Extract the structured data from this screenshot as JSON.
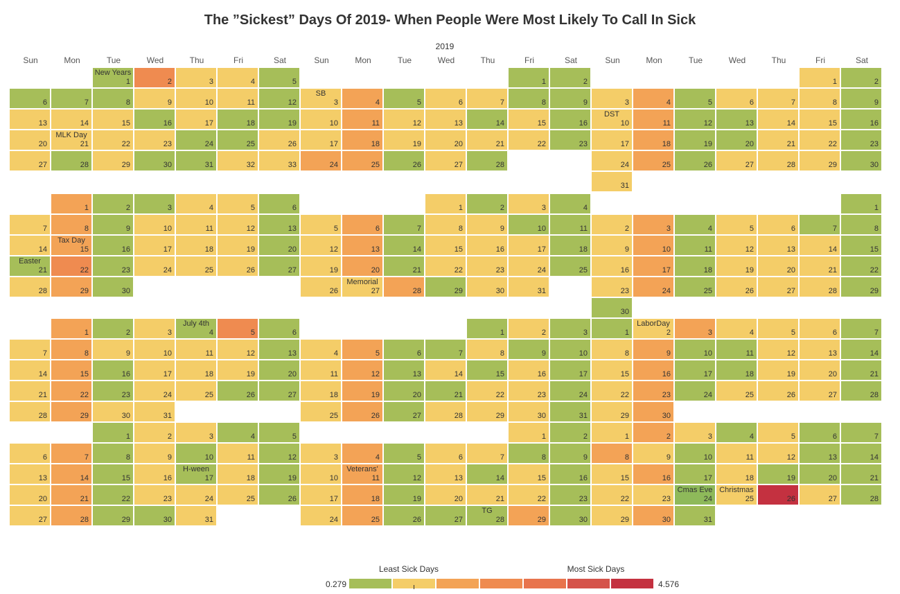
{
  "title": "The ”Sickest” Days Of 2019- When People Were Most Likely To Call In Sick",
  "year": "2019",
  "weekdays": [
    "Sun",
    "Mon",
    "Tue",
    "Wed",
    "Thu",
    "Fri",
    "Sat"
  ],
  "colors": {
    "G": "#a6be59",
    "Y": "#f4cd68",
    "O": "#f3a356",
    "D": "#ef8b50",
    "R": "#c43140",
    "L": "#8eb95a"
  },
  "legend": {
    "least_label": "Least Sick Days",
    "most_label": "Most Sick Days",
    "min": "0.279",
    "max": "4.576",
    "swatches": [
      "#a6be59",
      "#f4cd68",
      "#f3a356",
      "#ef8b50",
      "#e8744d",
      "#d5534a",
      "#c43140"
    ]
  },
  "chart_data": {
    "type": "heatmap",
    "title": "The ”Sickest” Days Of 2019- When People Were Most Likely To Call In Sick",
    "value_range": [
      0.279,
      4.576
    ],
    "color_key": "G=low (green), Y=low-mid (yellow), O=mid (orange), D=high (dark orange), R=highest (red), L=light green",
    "months": [
      {
        "start": 2,
        "colors": "GDYYG GGGYYYG YYYGYGGYY YYGGYYG YGGYY",
        "labels": {
          "1": "New Years",
          "21": "MLK Day"
        }
      },
      {
        "start": 5,
        "colors": "GG YOGYYGG YOYYGYG YOYYYYG OOGYG",
        "labels": {
          "3": "SB"
        }
      },
      {
        "start": 5,
        "colors": "YG YOGYYYG YOGGYYG YOGGYYG YOGYYYG Y",
        "labels": {
          "10": "DST"
        }
      },
      {
        "start": 1,
        "colors": "OGGYYG YOGYYYG YOGYYYG GDGYYYG YOG",
        "labels": {
          "15": "Tax Day",
          "21": "Easter"
        }
      },
      {
        "start": 3,
        "colors": "YGYG YOGYYGG YOGYYYG YOGYYYG YYOGYY",
        "labels": {
          "27": "Memorial"
        }
      },
      {
        "start": 6,
        "colors": "G YOGYYGG YOGYYYG YOGYYYG YOGYYYG G",
        "labels": {}
      },
      {
        "start": 1,
        "colors": "OGYGDG YOYYYYG YOGYYYG YOGYYGG YOYY",
        "labels": {
          "4": "July 4th"
        }
      },
      {
        "start": 4,
        "colors": "GYG YOGGYGG YOGYGYG YOGGYYG YOGYYYG",
        "labels": {}
      },
      {
        "start": 0,
        "colors": "GYOYYYG YOGGYYG YOGGYYG YOGYYYG YO",
        "labels": {
          "2": "LaborDay"
        }
      },
      {
        "start": 2,
        "colors": "GYYGG YOGYGYG YOGYGYG YOGYYYG YOGGY",
        "labels": {
          "17": "H-ween"
        }
      },
      {
        "start": 5,
        "colors": "YG YOGYYGG YOGYGYG YOGYYYG YOGGGOG",
        "labels": {
          "11": "Veterans'",
          "28": "TG"
        }
      },
      {
        "start": 0,
        "colors": "YOYGYGG OYGYYGG YOGYGGG YYLYRYG YOG",
        "labels": {
          "24": "Cmas Eve",
          "25": "Christmas"
        }
      }
    ]
  }
}
